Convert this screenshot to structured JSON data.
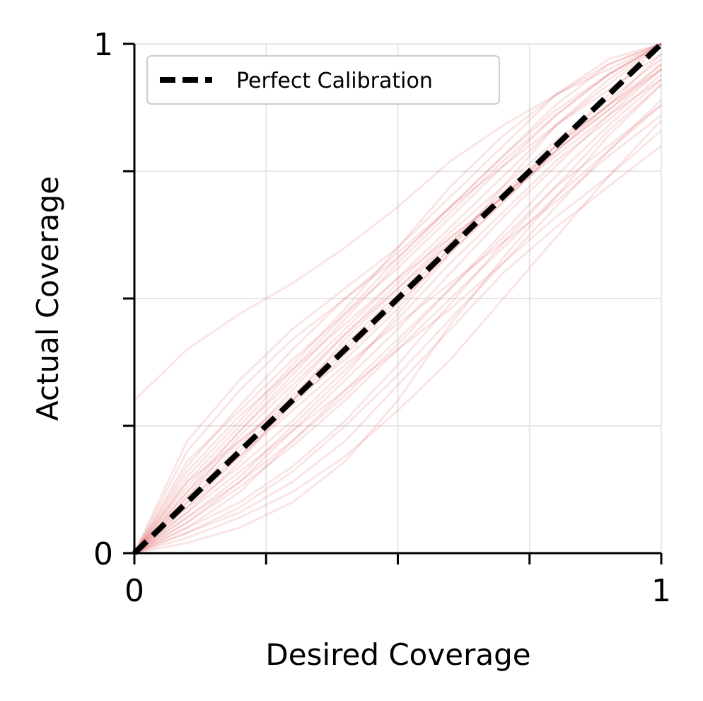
{
  "chart_data": {
    "type": "line",
    "title": "",
    "xlabel": "Desired Coverage",
    "ylabel": "Actual Coverage",
    "xlim": [
      0,
      1
    ],
    "ylim": [
      0,
      1
    ],
    "x_ticks": [
      0,
      0.25,
      0.5,
      0.75,
      1
    ],
    "y_ticks": [
      0,
      0.25,
      0.5,
      0.75,
      1
    ],
    "x_tick_labels": [
      "0",
      "",
      "",
      "",
      "1"
    ],
    "y_tick_labels": [
      "0",
      "",
      "",
      "",
      "1"
    ],
    "grid": true,
    "legend": {
      "placement": "upper-left",
      "entries": [
        "Perfect Calibration"
      ]
    },
    "x": [
      0,
      0.1,
      0.2,
      0.3,
      0.4,
      0.5,
      0.6,
      0.7,
      0.8,
      0.9,
      1.0
    ],
    "reference_line": {
      "name": "Perfect Calibration",
      "style": "dashed",
      "color": "#000000",
      "x": [
        0,
        1
      ],
      "y": [
        0,
        1
      ]
    },
    "series_style": {
      "color": "#d62728",
      "opacity": 0.12
    },
    "series": [
      {
        "values": [
          0.0,
          0.02,
          0.05,
          0.1,
          0.18,
          0.3,
          0.45,
          0.58,
          0.7,
          0.82,
          0.92
        ]
      },
      {
        "values": [
          0.3,
          0.4,
          0.47,
          0.53,
          0.6,
          0.68,
          0.77,
          0.84,
          0.9,
          0.95,
          1.0
        ]
      },
      {
        "values": [
          0.0,
          0.18,
          0.28,
          0.38,
          0.47,
          0.56,
          0.66,
          0.76,
          0.86,
          0.94,
          1.0
        ]
      },
      {
        "values": [
          0.0,
          0.05,
          0.12,
          0.22,
          0.32,
          0.42,
          0.52,
          0.62,
          0.72,
          0.8,
          0.88
        ]
      },
      {
        "values": [
          0.0,
          0.08,
          0.18,
          0.3,
          0.42,
          0.52,
          0.62,
          0.7,
          0.8,
          0.88,
          0.96
        ]
      },
      {
        "values": [
          0.0,
          0.12,
          0.24,
          0.34,
          0.44,
          0.54,
          0.64,
          0.74,
          0.84,
          0.92,
          1.0
        ]
      },
      {
        "values": [
          0.0,
          0.04,
          0.08,
          0.14,
          0.22,
          0.33,
          0.44,
          0.55,
          0.64,
          0.72,
          0.8
        ]
      },
      {
        "values": [
          0.0,
          0.14,
          0.22,
          0.3,
          0.38,
          0.48,
          0.6,
          0.72,
          0.84,
          0.93,
          1.0
        ]
      },
      {
        "values": [
          0.0,
          0.2,
          0.32,
          0.42,
          0.5,
          0.58,
          0.68,
          0.78,
          0.88,
          0.96,
          1.0
        ]
      },
      {
        "values": [
          0.0,
          0.09,
          0.17,
          0.26,
          0.36,
          0.46,
          0.57,
          0.67,
          0.77,
          0.85,
          0.94
        ]
      },
      {
        "values": [
          0.0,
          0.06,
          0.14,
          0.24,
          0.34,
          0.44,
          0.55,
          0.66,
          0.76,
          0.86,
          0.95
        ]
      },
      {
        "values": [
          0.0,
          0.1,
          0.2,
          0.3,
          0.4,
          0.5,
          0.6,
          0.7,
          0.8,
          0.9,
          1.0
        ]
      },
      {
        "values": [
          0.0,
          0.16,
          0.27,
          0.36,
          0.45,
          0.54,
          0.62,
          0.7,
          0.78,
          0.86,
          0.93
        ]
      },
      {
        "values": [
          0.0,
          0.03,
          0.07,
          0.12,
          0.19,
          0.28,
          0.38,
          0.5,
          0.62,
          0.74,
          0.85
        ]
      },
      {
        "values": [
          0.0,
          0.11,
          0.21,
          0.32,
          0.43,
          0.53,
          0.63,
          0.72,
          0.81,
          0.89,
          0.97
        ]
      },
      {
        "values": [
          0.0,
          0.07,
          0.15,
          0.25,
          0.35,
          0.47,
          0.59,
          0.69,
          0.79,
          0.87,
          0.96
        ]
      },
      {
        "values": [
          0.0,
          0.13,
          0.24,
          0.35,
          0.46,
          0.57,
          0.67,
          0.77,
          0.86,
          0.94,
          1.0
        ]
      },
      {
        "values": [
          0.0,
          0.08,
          0.16,
          0.24,
          0.32,
          0.4,
          0.48,
          0.57,
          0.66,
          0.74,
          0.83
        ]
      },
      {
        "values": [
          0.0,
          0.15,
          0.26,
          0.37,
          0.48,
          0.6,
          0.72,
          0.82,
          0.9,
          0.96,
          1.0
        ]
      },
      {
        "values": [
          0.0,
          0.05,
          0.1,
          0.17,
          0.26,
          0.37,
          0.49,
          0.61,
          0.72,
          0.83,
          0.92
        ]
      },
      {
        "values": [
          0.0,
          0.12,
          0.22,
          0.31,
          0.41,
          0.51,
          0.61,
          0.71,
          0.8,
          0.88,
          0.95
        ]
      },
      {
        "values": [
          0.0,
          0.09,
          0.19,
          0.29,
          0.39,
          0.49,
          0.59,
          0.69,
          0.79,
          0.88,
          0.98
        ]
      },
      {
        "values": [
          0.0,
          0.22,
          0.34,
          0.44,
          0.52,
          0.6,
          0.7,
          0.8,
          0.9,
          0.97,
          1.0
        ]
      },
      {
        "values": [
          0.0,
          0.06,
          0.13,
          0.21,
          0.3,
          0.4,
          0.5,
          0.6,
          0.7,
          0.79,
          0.88
        ]
      },
      {
        "values": [
          0.0,
          0.1,
          0.19,
          0.28,
          0.37,
          0.45,
          0.53,
          0.61,
          0.69,
          0.78,
          0.86
        ]
      },
      {
        "values": [
          0.0,
          0.14,
          0.25,
          0.36,
          0.47,
          0.58,
          0.68,
          0.78,
          0.87,
          0.94,
          1.0
        ]
      },
      {
        "values": [
          0.0,
          0.04,
          0.09,
          0.16,
          0.25,
          0.35,
          0.46,
          0.57,
          0.68,
          0.79,
          0.89
        ]
      },
      {
        "values": [
          0.0,
          0.17,
          0.29,
          0.4,
          0.5,
          0.59,
          0.68,
          0.76,
          0.84,
          0.91,
          0.98
        ]
      },
      {
        "values": [
          0.0,
          0.07,
          0.14,
          0.22,
          0.31,
          0.41,
          0.52,
          0.63,
          0.74,
          0.84,
          0.93
        ]
      },
      {
        "values": [
          0.0,
          0.11,
          0.23,
          0.33,
          0.43,
          0.52,
          0.61,
          0.7,
          0.79,
          0.87,
          0.95
        ]
      }
    ]
  }
}
